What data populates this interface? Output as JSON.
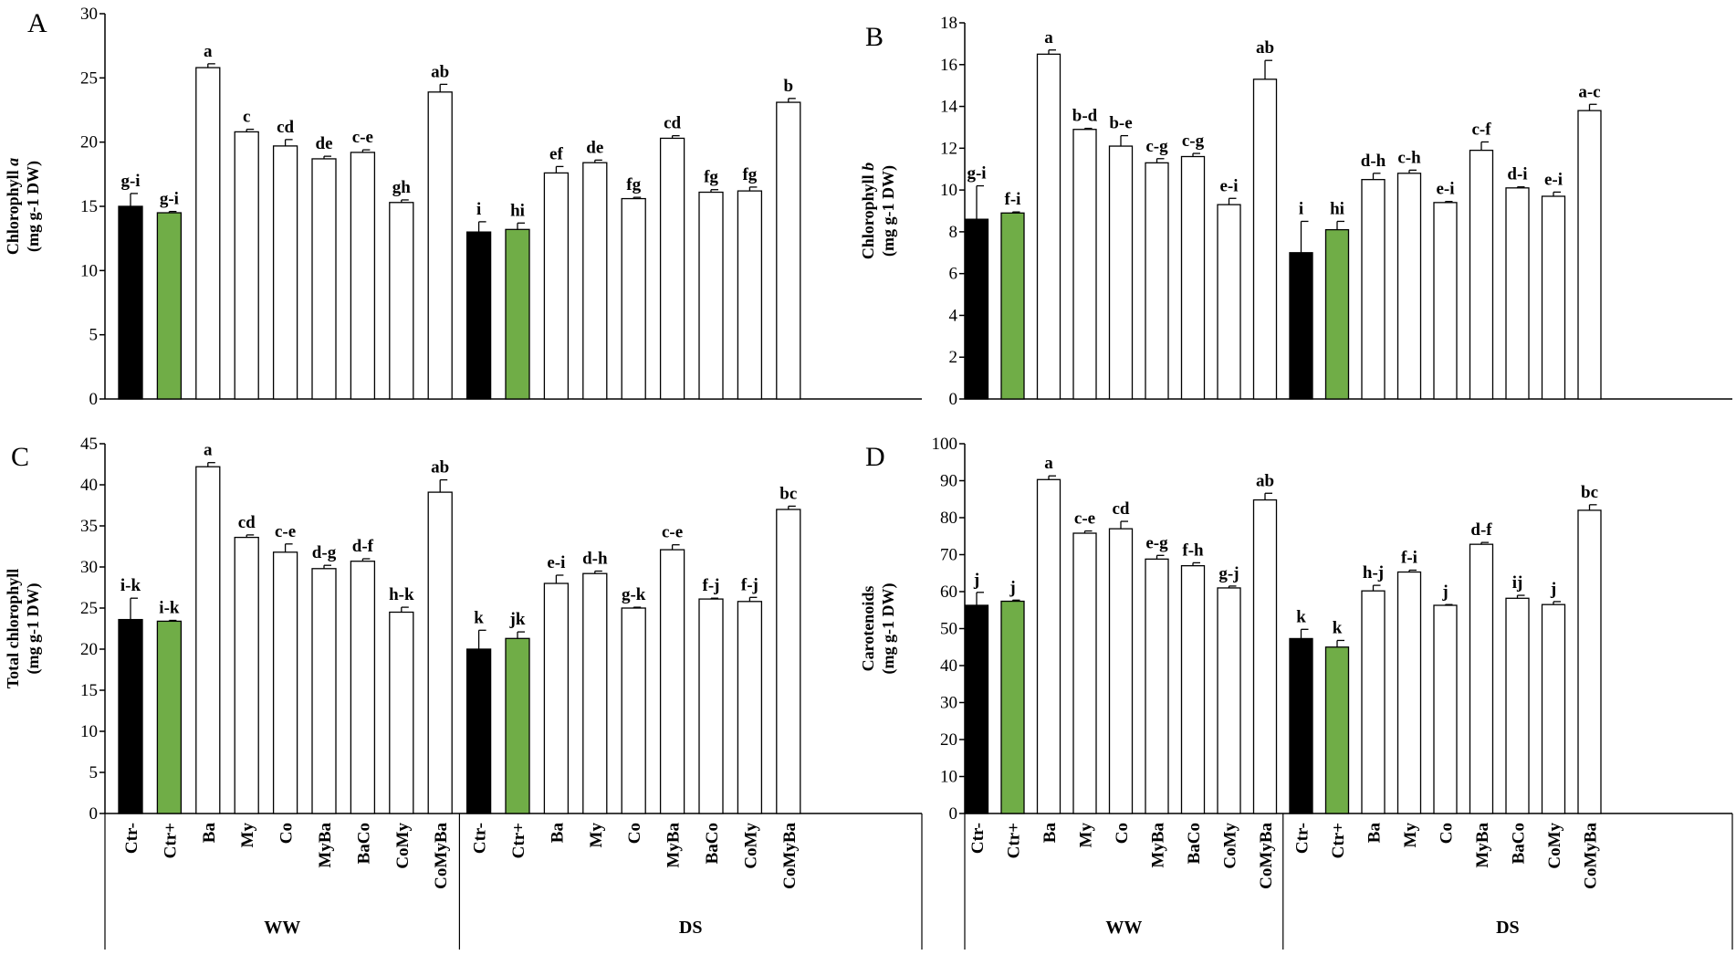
{
  "colors": {
    "ctr_minus": "#000000",
    "ctr_plus": "#70AD47",
    "treatment": "#FFFFFF",
    "stroke": "#000000"
  },
  "categories": [
    "Ctr-",
    "Ctr+",
    "Ba",
    "My",
    "Co",
    "MyBa",
    "BaCo",
    "CoMy",
    "CoMyBa",
    "Ctr-",
    "Ctr+",
    "Ba",
    "My",
    "Co",
    "MyBa",
    "BaCo",
    "CoMy",
    "CoMyBa"
  ],
  "groups": [
    "WW",
    "DS"
  ],
  "chart_data": [
    {
      "type": "bar",
      "panel_letter": "A",
      "ylabel_line1": "Chlorophyll a",
      "ylabel_line2": "(mg g-1 DW)",
      "ylim": [
        0,
        30
      ],
      "yticks": [
        0,
        5,
        10,
        15,
        20,
        25,
        30
      ],
      "values": [
        15.0,
        14.5,
        25.8,
        20.8,
        19.7,
        18.7,
        19.2,
        15.3,
        23.9,
        13.0,
        13.2,
        17.6,
        18.4,
        15.6,
        20.3,
        16.1,
        16.2,
        23.1
      ],
      "errors": [
        1.0,
        0.1,
        0.3,
        0.2,
        0.5,
        0.2,
        0.2,
        0.2,
        0.6,
        0.8,
        0.5,
        0.5,
        0.2,
        0.1,
        0.2,
        0.2,
        0.3,
        0.3
      ],
      "labels": [
        "g-i",
        "g-i",
        "a",
        "c",
        "cd",
        "de",
        "c-e",
        "gh",
        "ab",
        "i",
        "hi",
        "ef",
        "de",
        "fg",
        "cd",
        "fg",
        "fg",
        "b"
      ]
    },
    {
      "type": "bar",
      "panel_letter": "B",
      "ylabel_line1": "Chlorophyll b",
      "ylabel_line2": "(mg g-1 DW)",
      "ylim": [
        0,
        18
      ],
      "yticks": [
        0,
        2,
        4,
        6,
        8,
        10,
        12,
        14,
        16,
        18
      ],
      "values": [
        8.6,
        8.9,
        16.5,
        12.9,
        12.1,
        11.3,
        11.6,
        9.3,
        15.3,
        7.0,
        8.1,
        10.5,
        10.8,
        9.4,
        11.9,
        10.1,
        9.7,
        13.8
      ],
      "errors": [
        1.6,
        0.05,
        0.2,
        0.05,
        0.5,
        0.2,
        0.15,
        0.3,
        0.9,
        1.5,
        0.4,
        0.3,
        0.15,
        0.05,
        0.4,
        0.05,
        0.2,
        0.3
      ],
      "labels": [
        "g-i",
        "f-i",
        "a",
        "b-d",
        "b-e",
        "c-g",
        "c-g",
        "e-i",
        "ab",
        "i",
        "hi",
        "d-h",
        "c-h",
        "e-i",
        "c-f",
        "d-i",
        "e-i",
        "a-c"
      ]
    },
    {
      "type": "bar",
      "panel_letter": "C",
      "ylabel_line1": "Total chlorophyll",
      "ylabel_line2": "(mg g-1 DW)",
      "ylim": [
        0,
        45
      ],
      "yticks": [
        0,
        5,
        10,
        15,
        20,
        25,
        30,
        35,
        40,
        45
      ],
      "values": [
        23.6,
        23.4,
        42.2,
        33.6,
        31.8,
        29.8,
        30.7,
        24.5,
        39.1,
        20.0,
        21.3,
        28.0,
        29.2,
        25.0,
        32.1,
        26.1,
        25.8,
        37.0
      ],
      "errors": [
        2.6,
        0.1,
        0.5,
        0.3,
        1.0,
        0.4,
        0.3,
        0.6,
        1.5,
        2.3,
        0.8,
        1.0,
        0.3,
        0.1,
        0.6,
        0.1,
        0.5,
        0.4
      ],
      "labels": [
        "i-k",
        "i-k",
        "a",
        "cd",
        "c-e",
        "d-g",
        "d-f",
        "h-k",
        "ab",
        "k",
        "jk",
        "e-i",
        "d-h",
        "g-k",
        "c-e",
        "f-j",
        "f-j",
        "bc"
      ]
    },
    {
      "type": "bar",
      "panel_letter": "D",
      "ylabel_line1": "Carotenoids",
      "ylabel_line2": "(mg g-1 DW)",
      "ylim": [
        0,
        100
      ],
      "yticks": [
        0,
        10,
        20,
        30,
        40,
        50,
        60,
        70,
        80,
        90,
        100
      ],
      "values": [
        56.3,
        57.4,
        90.3,
        75.8,
        77.0,
        68.8,
        67.0,
        61.0,
        84.8,
        47.3,
        45.0,
        60.2,
        65.3,
        56.3,
        72.8,
        58.2,
        56.5,
        82.0
      ],
      "errors": [
        3.5,
        0.3,
        1.0,
        0.6,
        2.0,
        1.0,
        0.8,
        0.5,
        1.8,
        2.5,
        1.8,
        1.5,
        0.5,
        0.2,
        0.5,
        0.8,
        0.8,
        1.5
      ],
      "labels": [
        "j",
        "j",
        "a",
        "c-e",
        "cd",
        "e-g",
        "f-h",
        "g-j",
        "ab",
        "k",
        "k",
        "h-j",
        "f-i",
        "j",
        "d-f",
        "ij",
        "j",
        "bc"
      ]
    }
  ]
}
